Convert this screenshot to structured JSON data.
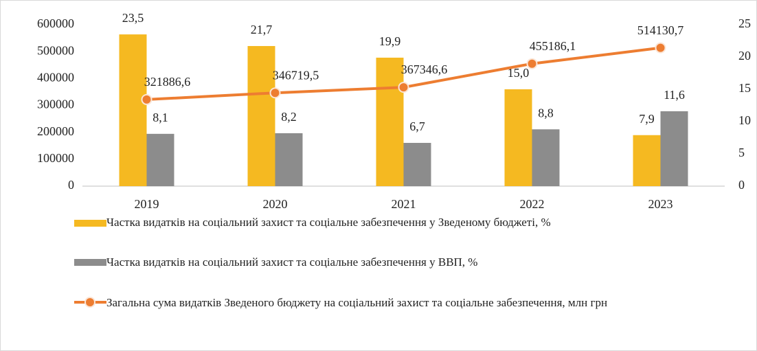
{
  "chart_data": {
    "type": "bar",
    "categories": [
      "2019",
      "2020",
      "2021",
      "2022",
      "2023"
    ],
    "ylim": [
      0,
      600000
    ],
    "yticks": [
      0,
      100000,
      200000,
      300000,
      400000,
      500000,
      600000
    ],
    "y2lim": [
      0,
      25
    ],
    "y2ticks": [
      0,
      5,
      10,
      15,
      20,
      25
    ],
    "grid": false,
    "legend": "bottom",
    "series": [
      {
        "name": "Частка видатків на соціальний захист та соціальне забезпечення у Зведеному бюджеті, %",
        "type": "bar",
        "axis": "y2",
        "color": "#F5B921",
        "values": [
          23.5,
          21.7,
          19.9,
          15.0,
          7.9
        ],
        "value_labels": [
          "23,5",
          "21,7",
          "19,9",
          "15,0",
          "7,9"
        ]
      },
      {
        "name": "Частка видатків на соціальний захист та соціальне забезпечення у ВВП, %",
        "type": "bar",
        "axis": "y2",
        "color": "#8C8C8C",
        "values": [
          8.1,
          8.2,
          6.7,
          8.8,
          11.6
        ],
        "value_labels": [
          "8,1",
          "8,2",
          "6,7",
          "8,8",
          "11,6"
        ]
      },
      {
        "name": "Загальна сума видатків Зведеного бюджету на соціальний захист та соціальне забезпечення, млн грн",
        "type": "line",
        "axis": "y",
        "color": "#ED7D31",
        "values": [
          321886.6,
          346719.5,
          367346.6,
          455186.1,
          514130.7
        ],
        "value_labels": [
          "321886,6",
          "346719,5",
          "367346,6",
          "455186,1",
          "514130,7"
        ]
      }
    ]
  }
}
